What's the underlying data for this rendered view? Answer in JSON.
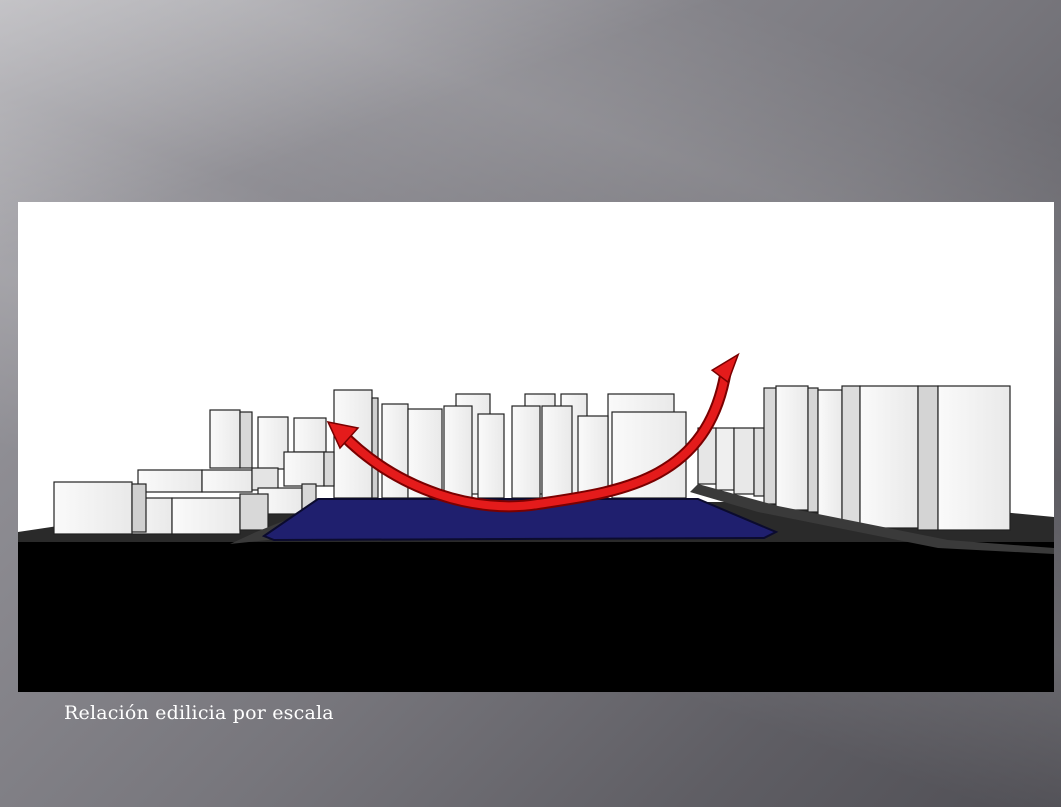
{
  "slide": {
    "caption": "Relación edilicia por escala"
  },
  "colors": {
    "background": "#77767c",
    "water": "#1f1f6e",
    "arrow": "#e41b1b",
    "ground": "#000000",
    "building": "#f4f4f4"
  },
  "icons": {
    "arrow": "curved-double-arrow-icon"
  }
}
